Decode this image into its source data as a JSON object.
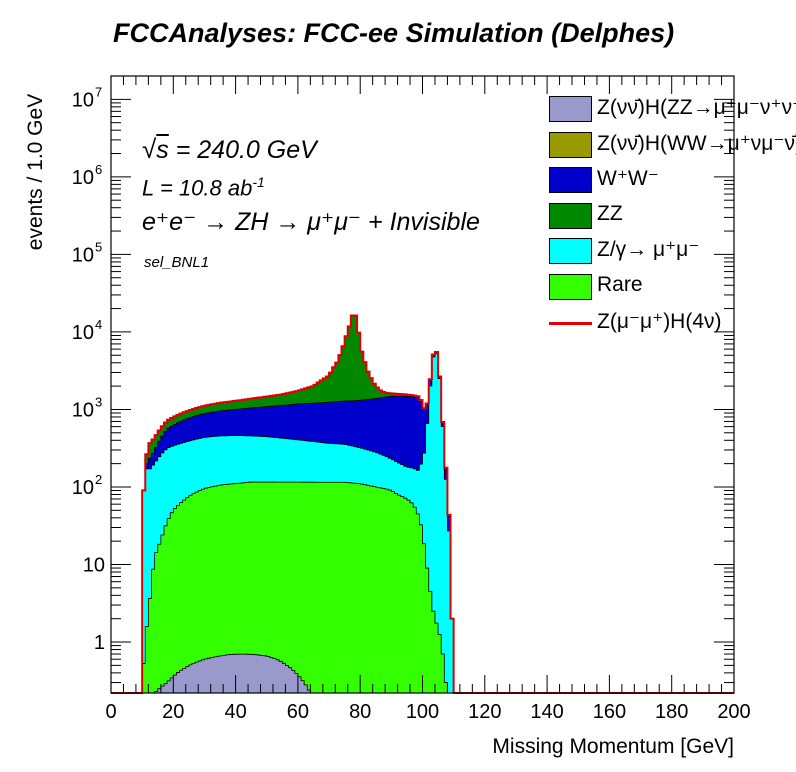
{
  "header": {
    "title": "FCCAnalyses: FCC-ee Simulation (Delphes)"
  },
  "annotations": {
    "energy_value": "s = 240.0 GeV",
    "lumi": "L = 10.8 ab",
    "lumi_exp": "-1",
    "process": "e⁺e⁻ → ZH → μ⁺μ⁻ + Invisible",
    "selection": "sel_BNL1"
  },
  "chart_data": {
    "type": "area",
    "stacked": true,
    "log_scale_y": true,
    "xlabel": "Missing Momentum [GeV]",
    "ylabel": "events / 1.0 GeV",
    "xlim": [
      0,
      200
    ],
    "ylim": [
      0.22,
      20000000
    ],
    "x_ticks": [
      "0",
      "20",
      "40",
      "60",
      "80",
      "100",
      "120",
      "140",
      "160",
      "180",
      "200"
    ],
    "y_ticks": [
      {
        "value": 1,
        "label": "1"
      },
      {
        "value": 10,
        "label": "10"
      },
      {
        "value": 100,
        "base": "10",
        "exp": "2"
      },
      {
        "value": 1000,
        "base": "10",
        "exp": "3"
      },
      {
        "value": 10000,
        "base": "10",
        "exp": "4"
      },
      {
        "value": 100000,
        "base": "10",
        "exp": "5"
      },
      {
        "value": 1000000,
        "base": "10",
        "exp": "6"
      },
      {
        "value": 10000000,
        "base": "10",
        "exp": "7"
      }
    ],
    "grid": false,
    "legend_position": "top-right",
    "stack_order": [
      "Z(νν̄)H(ZZ→μ⁺μ⁻ν⁺ν⁻)",
      "Rare",
      "Z/γ→ μ⁺μ⁻",
      "W⁺W⁻",
      "ZZ"
    ],
    "series": [
      {
        "name": "Z(νν̄)H(ZZ→μ⁺μ⁻ν⁺ν⁻)",
        "color": "#9999cc",
        "style": "fill",
        "points": [
          [
            10,
            0
          ],
          [
            14,
            0.22
          ],
          [
            18,
            0.3
          ],
          [
            22,
            0.42
          ],
          [
            26,
            0.52
          ],
          [
            30,
            0.6
          ],
          [
            34,
            0.65
          ],
          [
            38,
            0.69
          ],
          [
            42,
            0.7
          ],
          [
            46,
            0.69
          ],
          [
            50,
            0.66
          ],
          [
            54,
            0.58
          ],
          [
            58,
            0.45
          ],
          [
            62,
            0.3
          ],
          [
            64,
            0.22
          ],
          [
            66,
            0
          ]
        ]
      },
      {
        "name": "Z(νν̄)H(WW→μ⁺νμ⁻ν̄)",
        "color": "#999900",
        "style": "fill",
        "points": []
      },
      {
        "name": "W⁺W⁻",
        "color": "#0000cc",
        "style": "fill",
        "points": [
          [
            10,
            0
          ],
          [
            11,
            0
          ],
          [
            12,
            55
          ],
          [
            14,
            90
          ],
          [
            16,
            160
          ],
          [
            18,
            240
          ],
          [
            22,
            330
          ],
          [
            26,
            400
          ],
          [
            30,
            450
          ],
          [
            35,
            500
          ],
          [
            40,
            540
          ],
          [
            45,
            590
          ],
          [
            50,
            640
          ],
          [
            55,
            700
          ],
          [
            60,
            770
          ],
          [
            65,
            820
          ],
          [
            70,
            870
          ],
          [
            75,
            930
          ],
          [
            78,
            960
          ],
          [
            80,
            990
          ],
          [
            85,
            1100
          ],
          [
            90,
            1250
          ],
          [
            95,
            1300
          ],
          [
            99,
            1250
          ],
          [
            101,
            550
          ],
          [
            104,
            300
          ],
          [
            106,
            100
          ],
          [
            108,
            30
          ],
          [
            109,
            0
          ]
        ]
      },
      {
        "name": "ZZ",
        "color": "#008800",
        "style": "fill",
        "points": [
          [
            10,
            0
          ],
          [
            11,
            0
          ],
          [
            12,
            130
          ],
          [
            14,
            140
          ],
          [
            16,
            150
          ],
          [
            18,
            160
          ],
          [
            22,
            180
          ],
          [
            26,
            200
          ],
          [
            30,
            230
          ],
          [
            35,
            260
          ],
          [
            40,
            290
          ],
          [
            45,
            330
          ],
          [
            50,
            380
          ],
          [
            55,
            440
          ],
          [
            60,
            560
          ],
          [
            65,
            800
          ],
          [
            70,
            1500
          ],
          [
            73,
            3000
          ],
          [
            75,
            6000
          ],
          [
            77,
            12000
          ],
          [
            78,
            18000
          ],
          [
            79,
            12000
          ],
          [
            80,
            5000
          ],
          [
            82,
            2000
          ],
          [
            84,
            900
          ],
          [
            86,
            400
          ],
          [
            88,
            200
          ],
          [
            90,
            130
          ],
          [
            95,
            80
          ],
          [
            99,
            60
          ],
          [
            101,
            30
          ],
          [
            104,
            15
          ],
          [
            106,
            8
          ],
          [
            108,
            3
          ],
          [
            109,
            0
          ]
        ]
      },
      {
        "name": "Z/γ→ μ⁺μ⁻",
        "color": "#00ffff",
        "style": "fill",
        "points": [
          [
            10,
            0
          ],
          [
            11,
            180
          ],
          [
            12,
            160
          ],
          [
            14,
            190
          ],
          [
            16,
            240
          ],
          [
            18,
            280
          ],
          [
            22,
            300
          ],
          [
            26,
            320
          ],
          [
            30,
            340
          ],
          [
            35,
            350
          ],
          [
            40,
            350
          ],
          [
            45,
            340
          ],
          [
            50,
            330
          ],
          [
            55,
            310
          ],
          [
            60,
            290
          ],
          [
            65,
            270
          ],
          [
            70,
            250
          ],
          [
            75,
            240
          ],
          [
            80,
            210
          ],
          [
            85,
            180
          ],
          [
            90,
            140
          ],
          [
            95,
            110
          ],
          [
            99,
            120
          ],
          [
            101,
            300
          ],
          [
            102,
            1000
          ],
          [
            103,
            3000
          ],
          [
            104,
            6500
          ],
          [
            105,
            4000
          ],
          [
            106,
            1000
          ],
          [
            107,
            200
          ],
          [
            108,
            50
          ],
          [
            109,
            4
          ],
          [
            110,
            0
          ]
        ]
      },
      {
        "name": "Rare",
        "color": "#33ff00",
        "style": "fill",
        "points": [
          [
            10,
            0
          ],
          [
            11,
            1
          ],
          [
            12,
            2
          ],
          [
            13,
            5
          ],
          [
            14,
            12
          ],
          [
            16,
            20
          ],
          [
            18,
            35
          ],
          [
            20,
            50
          ],
          [
            22,
            60
          ],
          [
            24,
            70
          ],
          [
            26,
            80
          ],
          [
            30,
            95
          ],
          [
            35,
            105
          ],
          [
            40,
            110
          ],
          [
            45,
            115
          ],
          [
            50,
            115
          ],
          [
            55,
            115
          ],
          [
            60,
            115
          ],
          [
            65,
            115
          ],
          [
            70,
            115
          ],
          [
            75,
            115
          ],
          [
            80,
            110
          ],
          [
            85,
            100
          ],
          [
            88,
            95
          ],
          [
            90,
            90
          ],
          [
            92,
            80
          ],
          [
            95,
            70
          ],
          [
            97,
            60
          ],
          [
            99,
            40
          ],
          [
            100,
            25
          ],
          [
            101,
            12
          ],
          [
            102,
            6
          ],
          [
            103,
            3
          ],
          [
            104,
            2
          ],
          [
            105,
            1.5
          ],
          [
            106,
            1
          ],
          [
            107,
            0.4
          ],
          [
            108,
            0.2
          ],
          [
            109,
            0
          ]
        ]
      },
      {
        "name": "Z(μ⁻μ⁺)H(4ν)",
        "color": "#e00000",
        "style": "line",
        "points": []
      }
    ],
    "legend": [
      {
        "label": "Z(νν̄)H(ZZ→μ⁺μ⁻ν⁺ν⁻)",
        "color": "#9999cc",
        "kind": "fill"
      },
      {
        "label": "Z(νν̄)H(WW→μ⁺νμ⁻ν̄)",
        "color": "#999900",
        "kind": "fill"
      },
      {
        "label": "W⁺W⁻",
        "color": "#0000cc",
        "kind": "fill"
      },
      {
        "label": "ZZ",
        "color": "#008800",
        "kind": "fill"
      },
      {
        "label": "Z/γ→ μ⁺μ⁻",
        "color": "#00ffff",
        "kind": "fill"
      },
      {
        "label": "Rare",
        "color": "#33ff00",
        "kind": "fill"
      },
      {
        "label": "Z(μ⁻μ⁺)H(4ν)",
        "color": "#e00000",
        "kind": "line"
      }
    ]
  }
}
